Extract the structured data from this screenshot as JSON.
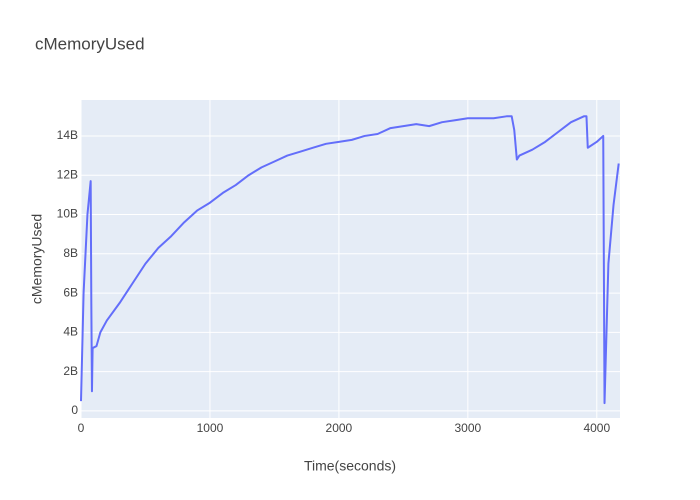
{
  "chart_data": {
    "type": "line",
    "title": "cMemoryUsed",
    "x_label": "Time(seconds)",
    "y_label": "cMemoryUsed",
    "color": "#636efa",
    "grid": true,
    "x": [
      0,
      20,
      50,
      75,
      80,
      85,
      90,
      120,
      150,
      200,
      300,
      400,
      500,
      600,
      700,
      800,
      900,
      1000,
      1100,
      1200,
      1300,
      1400,
      1500,
      1600,
      1700,
      1800,
      1900,
      2000,
      2100,
      2200,
      2300,
      2400,
      2500,
      2600,
      2700,
      2800,
      2900,
      3000,
      3100,
      3200,
      3300,
      3340,
      3360,
      3380,
      3400,
      3500,
      3600,
      3700,
      3800,
      3900,
      3920,
      3930,
      4000,
      4050,
      4060,
      4090,
      4130,
      4170
    ],
    "values": [
      500000000,
      6000000000,
      10000000000,
      11700000000,
      5500000000,
      1000000000,
      3200000000,
      3300000000,
      4000000000,
      4600000000,
      5500000000,
      6500000000,
      7500000000,
      8300000000,
      8900000000,
      9600000000,
      10200000000,
      10600000000,
      11100000000,
      11500000000,
      12000000000,
      12400000000,
      12700000000,
      13000000000,
      13200000000,
      13400000000,
      13600000000,
      13700000000,
      13800000000,
      14000000000,
      14100000000,
      14400000000,
      14500000000,
      14600000000,
      14500000000,
      14700000000,
      14800000000,
      14900000000,
      14900000000,
      14900000000,
      15000000000,
      15000000000,
      14300000000,
      12800000000,
      13000000000,
      13300000000,
      13700000000,
      14200000000,
      14700000000,
      15000000000,
      15000000000,
      13400000000,
      13700000000,
      14000000000,
      400000000,
      7500000000,
      10500000000,
      12600000000
    ],
    "xlim": [
      0,
      4180
    ],
    "xticks": [
      0,
      1000,
      2000,
      3000,
      4000
    ],
    "ylim": [
      -360000000,
      15830000000
    ],
    "yticks": [
      0,
      {
        "value": 2000000000,
        "label": "2B"
      },
      {
        "value": 4000000000,
        "label": "4B"
      },
      {
        "value": 6000000000,
        "label": "6B"
      },
      {
        "value": 8000000000,
        "label": "8B"
      },
      {
        "value": 10000000000,
        "label": "10B"
      },
      {
        "value": 12000000000,
        "label": "12B"
      },
      {
        "value": 14000000000,
        "label": "14B"
      }
    ]
  }
}
